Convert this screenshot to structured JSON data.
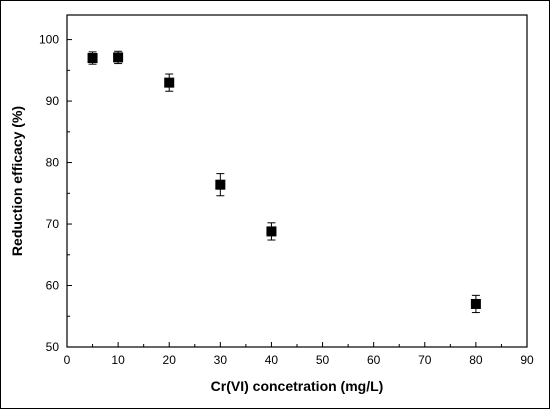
{
  "chart_data": {
    "type": "scatter",
    "title": "",
    "xlabel": "Cr(VI) concetration (mg/L)",
    "ylabel": "Reduction efficacy (%)",
    "xlim": [
      0,
      90
    ],
    "ylim": [
      50,
      104
    ],
    "xticks": [
      0,
      10,
      20,
      30,
      40,
      50,
      60,
      70,
      80,
      90
    ],
    "yticks": [
      50,
      60,
      70,
      80,
      90,
      100
    ],
    "grid": false,
    "legend": "none",
    "marker": "square",
    "color": "#000000",
    "series": [
      {
        "points": [
          {
            "x": 5,
            "y": 97.0,
            "err": 1.0
          },
          {
            "x": 10,
            "y": 97.1,
            "err": 1.0
          },
          {
            "x": 20,
            "y": 93.0,
            "err": 1.4
          },
          {
            "x": 30,
            "y": 76.4,
            "err": 1.8
          },
          {
            "x": 40,
            "y": 68.8,
            "err": 1.4
          },
          {
            "x": 80,
            "y": 57.0,
            "err": 1.4
          }
        ]
      }
    ]
  }
}
